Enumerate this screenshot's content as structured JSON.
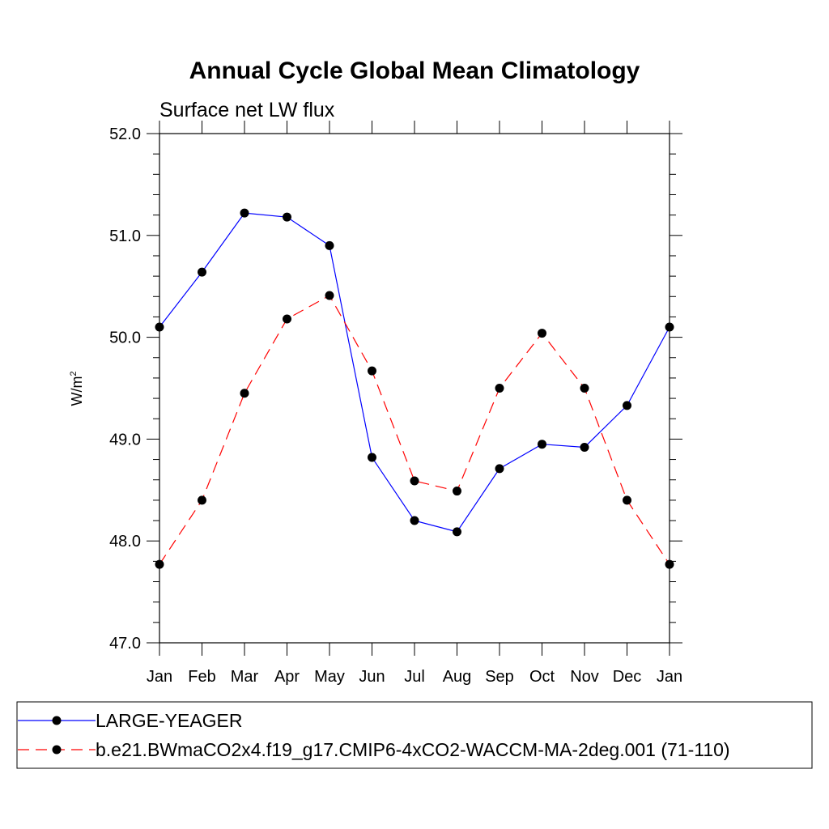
{
  "chart_data": {
    "type": "line",
    "title": "Annual Cycle Global Mean Climatology",
    "subtitle": "Surface net LW flux",
    "ylabel": "W/m",
    "ylabel_sup": "2",
    "xlabel": "",
    "categories": [
      "Jan",
      "Feb",
      "Mar",
      "Apr",
      "May",
      "Jun",
      "Jul",
      "Aug",
      "Sep",
      "Oct",
      "Nov",
      "Dec",
      "Jan"
    ],
    "ylim": [
      47.0,
      52.0
    ],
    "yticks": [
      "47.0",
      "48.0",
      "49.0",
      "50.0",
      "51.0",
      "52.0"
    ],
    "series": [
      {
        "name": "LARGE-YEAGER",
        "color": "#0000ff",
        "dash": "solid",
        "values": [
          50.1,
          50.64,
          51.22,
          51.18,
          50.9,
          48.82,
          48.2,
          48.09,
          48.71,
          48.95,
          48.92,
          49.33,
          50.1
        ]
      },
      {
        "name": "b.e21.BWmaCO2x4.f19_g17.CMIP6-4xCO2-WACCM-MA-2deg.001 (71-110)",
        "color": "#ff0000",
        "dash": "dashed",
        "values": [
          47.77,
          48.4,
          49.45,
          50.18,
          50.41,
          49.67,
          48.59,
          48.49,
          49.5,
          50.04,
          49.5,
          48.4,
          47.77
        ]
      }
    ]
  }
}
